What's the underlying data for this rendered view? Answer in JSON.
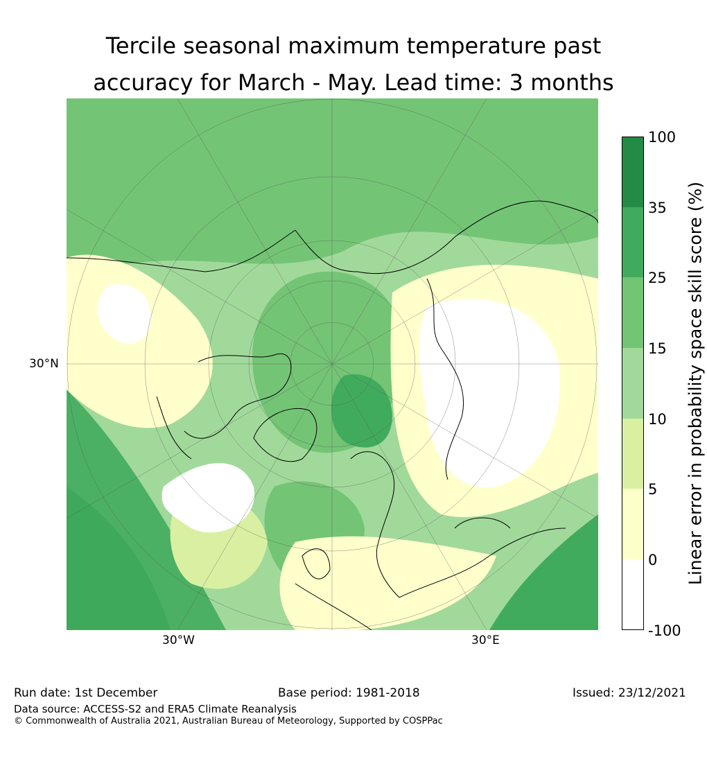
{
  "title_line1": "Tercile seasonal maximum temperature past",
  "title_line2": "accuracy for March - May. Lead time: 3 months",
  "axis_labels": {
    "lat_30n": "30°N",
    "lon_30w": "30°W",
    "lon_30e": "30°E"
  },
  "colorbar": {
    "title": "Linear error in probability space skill score (%)",
    "ticks": [
      "100",
      "35",
      "25",
      "15",
      "10",
      "5",
      "0",
      "-100"
    ],
    "colors": [
      "#238b45",
      "#41ab5d",
      "#74c476",
      "#a1d99b",
      "#d9f0a3",
      "#ffffcc",
      "#ffffff"
    ]
  },
  "footer": {
    "run_date": "Run date: 1st December",
    "base_period": "Base period: 1981-2018",
    "issued": "Issued: 23/12/2021",
    "data_source": "Data source: ACCESS-S2 and ERA5 Climate Reanalysis",
    "copyright": "© Commonwealth of Australia 2021, Australian Bureau of Meteorology, Supported by COSPPac"
  }
}
